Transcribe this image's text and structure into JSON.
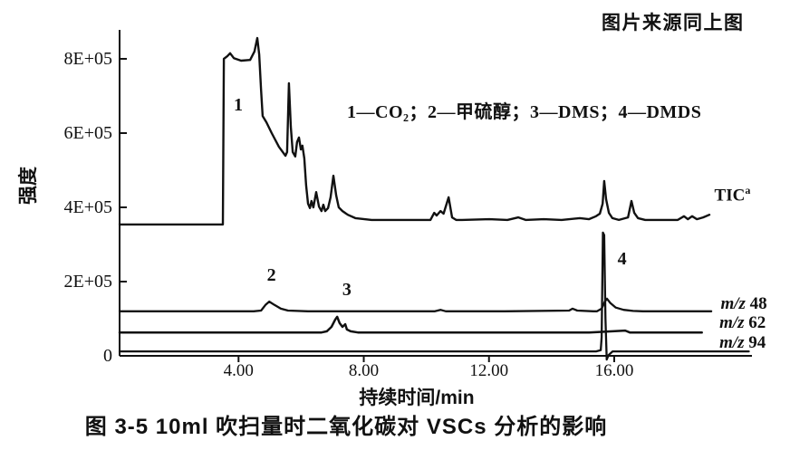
{
  "page": {
    "source_note": "图片来源同上图",
    "caption": "图 3-5  10ml 吹扫量时二氧化碳对 VSCs 分析的影响"
  },
  "chart_data": {
    "type": "line",
    "title": "",
    "xlabel": "持续时间/min",
    "ylabel": "强度",
    "legend_text": "1—CO₂；2—甲硫醇；3—DMS；4—DMDS",
    "y_unit": "×1E+05",
    "xlim": [
      0.2,
      20.4
    ],
    "ylim": [
      0,
      8.78
    ],
    "grid": false,
    "legend_position": "inside-top",
    "line_color": "#111111",
    "background": "#ffffff",
    "x_ticks": [
      {
        "value": 4,
        "label": "4.00"
      },
      {
        "value": 8,
        "label": "8.00"
      },
      {
        "value": 12,
        "label": "12.00"
      },
      {
        "value": 16,
        "label": "16.00"
      }
    ],
    "y_ticks": [
      {
        "value": 0,
        "label": "0"
      },
      {
        "value": 2,
        "label": "2E+05"
      },
      {
        "value": 4,
        "label": "4E+05"
      },
      {
        "value": 6,
        "label": "6E+05"
      },
      {
        "value": 8,
        "label": "8E+05"
      }
    ],
    "series": [
      {
        "name": "TIC",
        "label": {
          "text": "TIC",
          "sup": "a"
        },
        "label_anchor": [
          19.2,
          4.45
        ],
        "points": [
          [
            0.2,
            3.54
          ],
          [
            3.5,
            3.54
          ],
          [
            3.53,
            8.0
          ],
          [
            3.64,
            8.07
          ],
          [
            3.73,
            8.15
          ],
          [
            3.85,
            8.02
          ],
          [
            4.08,
            7.95
          ],
          [
            4.37,
            7.97
          ],
          [
            4.51,
            8.2
          ],
          [
            4.6,
            8.56
          ],
          [
            4.66,
            8.12
          ],
          [
            4.72,
            7.15
          ],
          [
            4.77,
            6.46
          ],
          [
            4.89,
            6.29
          ],
          [
            5.06,
            6.0
          ],
          [
            5.29,
            5.63
          ],
          [
            5.5,
            5.39
          ],
          [
            5.55,
            5.49
          ],
          [
            5.61,
            7.34
          ],
          [
            5.67,
            6.17
          ],
          [
            5.73,
            5.49
          ],
          [
            5.81,
            5.37
          ],
          [
            5.87,
            5.76
          ],
          [
            5.93,
            5.88
          ],
          [
            5.99,
            5.56
          ],
          [
            6.04,
            5.66
          ],
          [
            6.1,
            5.32
          ],
          [
            6.16,
            4.59
          ],
          [
            6.22,
            4.1
          ],
          [
            6.28,
            3.98
          ],
          [
            6.33,
            4.17
          ],
          [
            6.39,
            4.0
          ],
          [
            6.48,
            4.41
          ],
          [
            6.57,
            4.02
          ],
          [
            6.65,
            3.9
          ],
          [
            6.71,
            4.07
          ],
          [
            6.77,
            3.9
          ],
          [
            6.86,
            3.98
          ],
          [
            6.94,
            4.27
          ],
          [
            7.03,
            4.85
          ],
          [
            7.12,
            4.32
          ],
          [
            7.2,
            4.0
          ],
          [
            7.32,
            3.9
          ],
          [
            7.49,
            3.8
          ],
          [
            7.73,
            3.71
          ],
          [
            8.25,
            3.66
          ],
          [
            9.11,
            3.66
          ],
          [
            9.98,
            3.66
          ],
          [
            10.13,
            3.66
          ],
          [
            10.25,
            3.85
          ],
          [
            10.33,
            3.78
          ],
          [
            10.45,
            3.9
          ],
          [
            10.55,
            3.83
          ],
          [
            10.71,
            4.27
          ],
          [
            10.82,
            3.73
          ],
          [
            10.95,
            3.66
          ],
          [
            11.14,
            3.66
          ],
          [
            12.01,
            3.68
          ],
          [
            12.59,
            3.66
          ],
          [
            12.94,
            3.73
          ],
          [
            13.17,
            3.66
          ],
          [
            13.75,
            3.68
          ],
          [
            14.32,
            3.66
          ],
          [
            14.9,
            3.71
          ],
          [
            15.19,
            3.68
          ],
          [
            15.42,
            3.76
          ],
          [
            15.54,
            3.83
          ],
          [
            15.63,
            4.1
          ],
          [
            15.68,
            4.71
          ],
          [
            15.74,
            4.22
          ],
          [
            15.83,
            3.85
          ],
          [
            15.94,
            3.71
          ],
          [
            16.15,
            3.66
          ],
          [
            16.44,
            3.73
          ],
          [
            16.55,
            4.17
          ],
          [
            16.64,
            3.85
          ],
          [
            16.76,
            3.71
          ],
          [
            16.99,
            3.66
          ],
          [
            17.51,
            3.66
          ],
          [
            18.03,
            3.66
          ],
          [
            18.23,
            3.76
          ],
          [
            18.35,
            3.68
          ],
          [
            18.49,
            3.76
          ],
          [
            18.64,
            3.68
          ],
          [
            18.84,
            3.73
          ],
          [
            19.04,
            3.8
          ]
        ]
      },
      {
        "name": "m/z 48",
        "label": {
          "italic": "m/z",
          "text": " 48"
        },
        "label_anchor": [
          19.4,
          1.39
        ],
        "points": [
          [
            0.2,
            1.2
          ],
          [
            4.48,
            1.2
          ],
          [
            4.72,
            1.22
          ],
          [
            4.86,
            1.37
          ],
          [
            4.98,
            1.46
          ],
          [
            5.15,
            1.37
          ],
          [
            5.35,
            1.27
          ],
          [
            5.58,
            1.22
          ],
          [
            6.22,
            1.2
          ],
          [
            10.27,
            1.2
          ],
          [
            10.45,
            1.24
          ],
          [
            10.62,
            1.2
          ],
          [
            12.5,
            1.2
          ],
          [
            14.56,
            1.22
          ],
          [
            14.67,
            1.27
          ],
          [
            14.82,
            1.22
          ],
          [
            15.34,
            1.2
          ],
          [
            15.45,
            1.2
          ],
          [
            15.6,
            1.27
          ],
          [
            15.7,
            1.46
          ],
          [
            15.77,
            1.54
          ],
          [
            15.88,
            1.42
          ],
          [
            16.05,
            1.3
          ],
          [
            16.3,
            1.24
          ],
          [
            16.6,
            1.21
          ],
          [
            16.92,
            1.2
          ],
          [
            19.1,
            1.2
          ]
        ]
      },
      {
        "name": "m/z 62",
        "label": {
          "italic": "m/z",
          "text": " 62"
        },
        "label_anchor": [
          19.36,
          0.88
        ],
        "points": [
          [
            0.2,
            0.63
          ],
          [
            6.65,
            0.63
          ],
          [
            6.82,
            0.66
          ],
          [
            6.97,
            0.78
          ],
          [
            7.09,
            0.98
          ],
          [
            7.15,
            1.05
          ],
          [
            7.23,
            0.88
          ],
          [
            7.32,
            0.78
          ],
          [
            7.41,
            0.85
          ],
          [
            7.46,
            0.71
          ],
          [
            7.58,
            0.66
          ],
          [
            7.81,
            0.63
          ],
          [
            15.2,
            0.63
          ],
          [
            16.35,
            0.68
          ],
          [
            16.5,
            0.63
          ],
          [
            18.8,
            0.63
          ]
        ]
      },
      {
        "name": "m/z 94",
        "label": {
          "italic": "m/z",
          "text": " 94"
        },
        "label_anchor": [
          19.36,
          0.34
        ],
        "points": [
          [
            0.2,
            0.12
          ],
          [
            15.42,
            0.12
          ],
          [
            15.57,
            0.15
          ],
          [
            15.6,
            0.5
          ],
          [
            15.64,
            3.32
          ],
          [
            15.68,
            3.25
          ],
          [
            15.72,
            1.0
          ],
          [
            15.76,
            -0.1
          ],
          [
            15.82,
            0.02
          ],
          [
            15.95,
            0.12
          ],
          [
            16.06,
            0.12
          ],
          [
            20.3,
            0.12
          ]
        ]
      }
    ],
    "annotations": [
      {
        "label": "1",
        "x": 3.99,
        "y": 6.76
      },
      {
        "label": "2",
        "x": 5.05,
        "y": 2.18
      },
      {
        "label": "3",
        "x": 7.46,
        "y": 1.78
      },
      {
        "label": "4",
        "x": 16.25,
        "y": 2.6
      }
    ]
  }
}
